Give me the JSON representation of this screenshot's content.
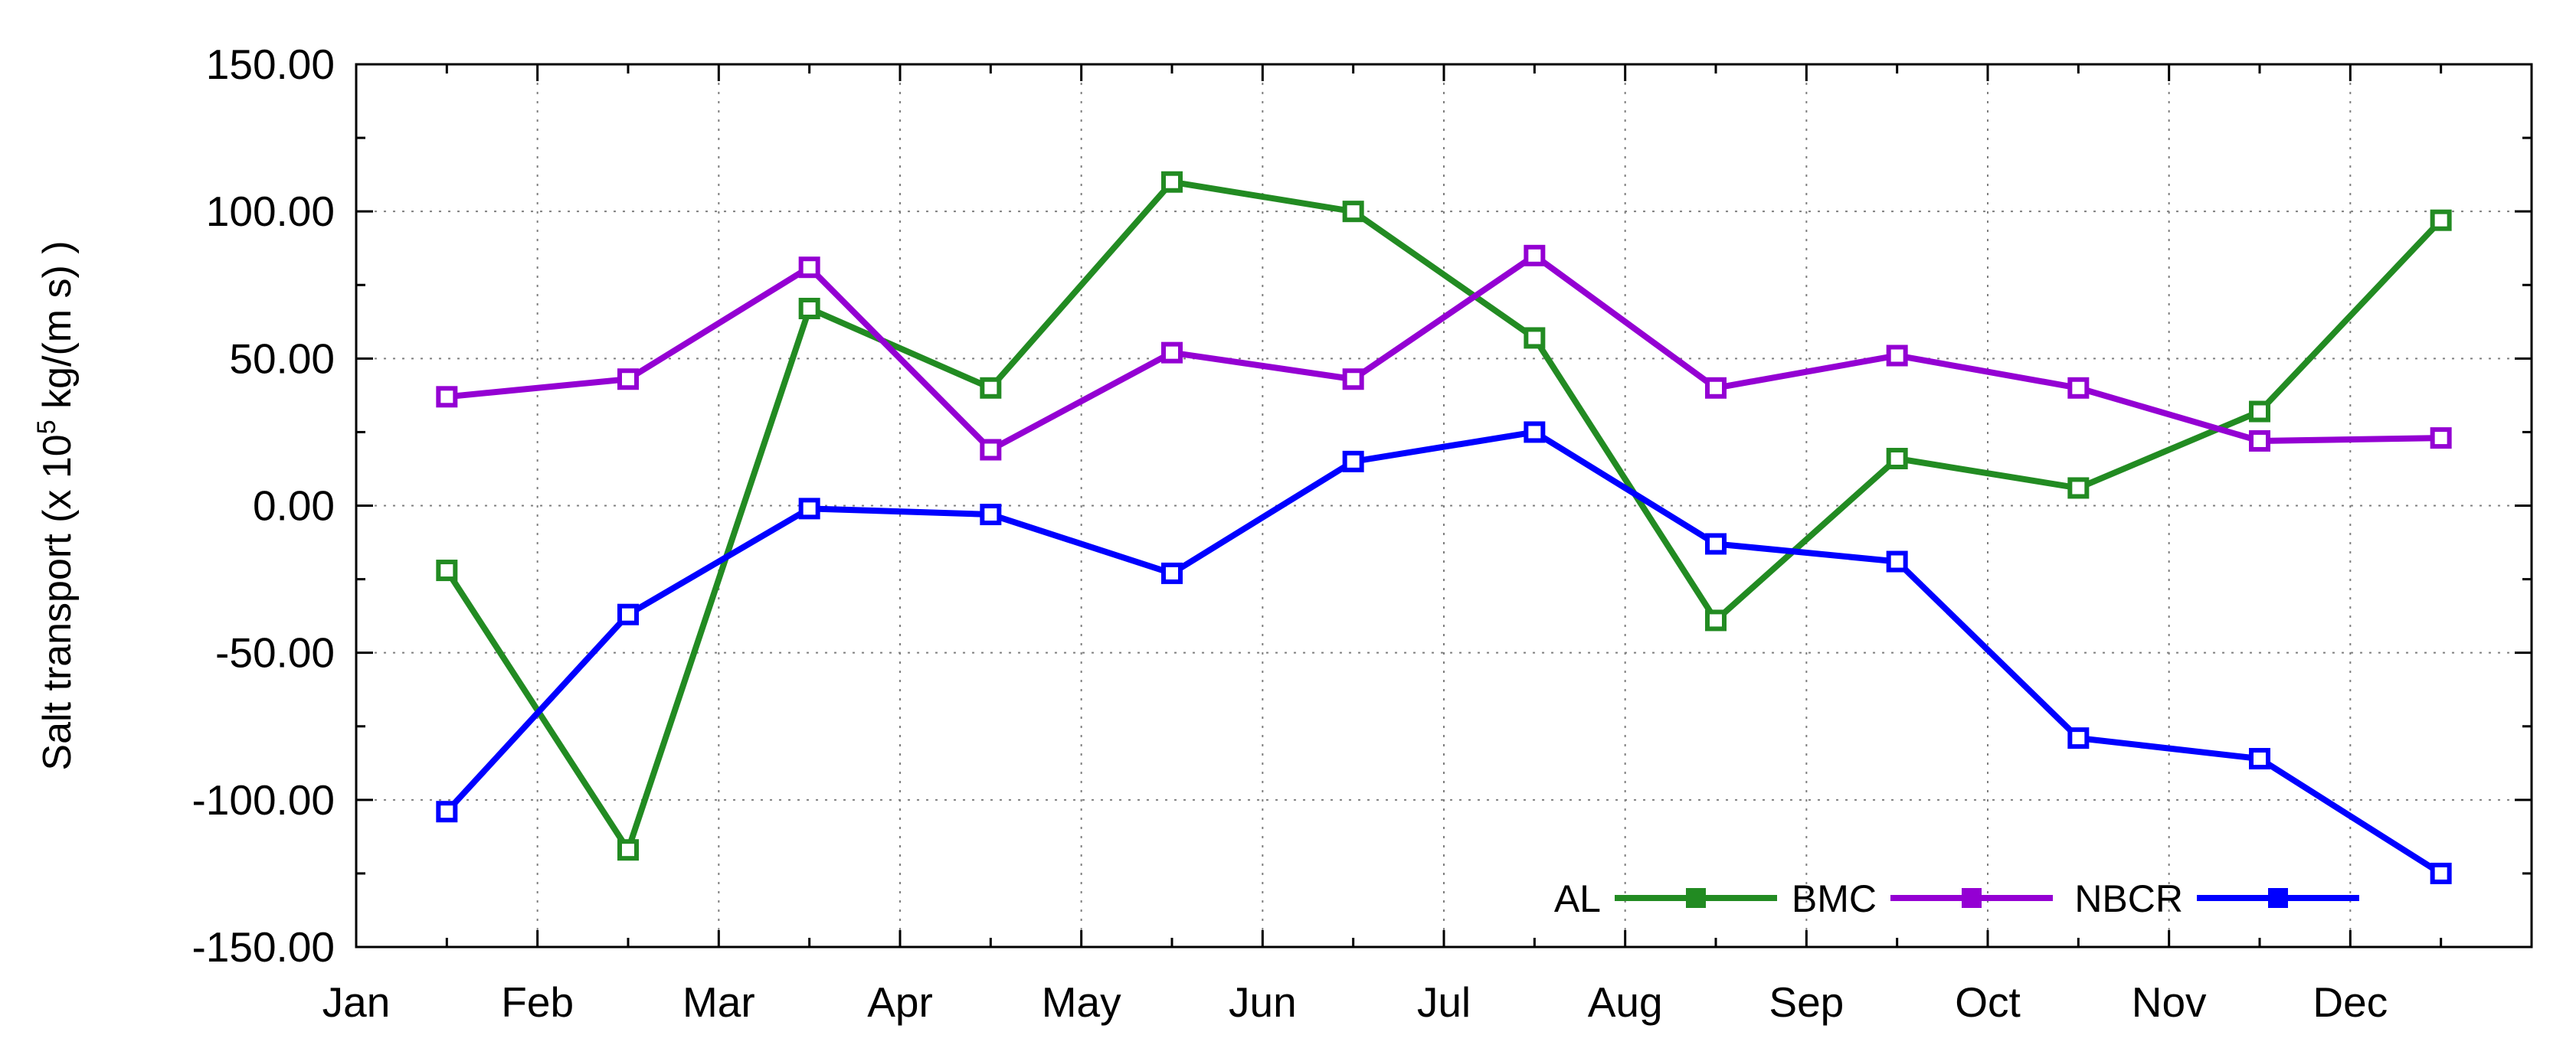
{
  "chart_data": {
    "type": "line",
    "title": "",
    "xlabel": "",
    "ylabel": {
      "prefix": "Salt transport (x 10",
      "exponent": "5",
      "suffix": " kg/(m s) )"
    },
    "x_ticks": [
      "Jan",
      "Feb",
      "Mar",
      "Apr",
      "May",
      "Jun",
      "Jul",
      "Aug",
      "Sep",
      "Oct",
      "Nov",
      "Dec"
    ],
    "xlim": [
      0,
      12
    ],
    "ylim": [
      -150,
      150
    ],
    "y_ticks": [
      -150,
      -100,
      -50,
      0,
      50,
      100,
      150
    ],
    "y_tick_labels": [
      "-150.00",
      "-100.00",
      "-50.00",
      "0.00",
      "50.00",
      "100.00",
      "150.00"
    ],
    "grid": true,
    "legend_position": "bottom-right",
    "x": [
      0.5,
      1.5,
      2.5,
      3.5,
      4.5,
      5.5,
      6.5,
      7.5,
      8.5,
      9.5,
      10.5,
      11.5
    ],
    "series": [
      {
        "name": "AL",
        "color": "#228b22",
        "marker": "square",
        "values": [
          -22,
          -117,
          67,
          40,
          110,
          100,
          57,
          -39,
          16,
          6,
          32,
          97
        ]
      },
      {
        "name": "BMC",
        "color": "#9400d3",
        "marker": "square",
        "values": [
          37,
          43,
          81,
          19,
          52,
          43,
          85,
          40,
          51,
          40,
          22,
          23
        ]
      },
      {
        "name": "NBCR",
        "color": "#0000ff",
        "marker": "square",
        "values": [
          -104,
          -37,
          -1,
          -3,
          -23,
          15,
          25,
          -13,
          -19,
          -79,
          -86,
          -125
        ]
      }
    ]
  }
}
